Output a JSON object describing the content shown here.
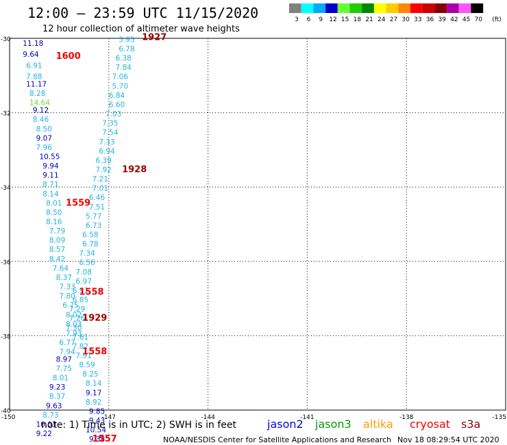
{
  "header": {
    "title": "12:00 – 23:59 UTC 11/15/2020",
    "subtitle": "12 hour collection of altimeter wave heights"
  },
  "legend": {
    "unit": "(ft)",
    "items": [
      {
        "label": "3",
        "color": "#808080"
      },
      {
        "label": "6",
        "color": "#00ffff"
      },
      {
        "label": "9",
        "color": "#00aaff"
      },
      {
        "label": "12",
        "color": "#0000cc"
      },
      {
        "label": "15",
        "color": "#66ff33"
      },
      {
        "label": "18",
        "color": "#22cc00"
      },
      {
        "label": "21",
        "color": "#008800"
      },
      {
        "label": "24",
        "color": "#ffff00"
      },
      {
        "label": "27",
        "color": "#ffcc00"
      },
      {
        "label": "30",
        "color": "#ff8800"
      },
      {
        "label": "33",
        "color": "#ff0000"
      },
      {
        "label": "36",
        "color": "#cc0000"
      },
      {
        "label": "39",
        "color": "#880000"
      },
      {
        "label": "42",
        "color": "#aa00aa"
      },
      {
        "label": "45",
        "color": "#ff55ff"
      },
      {
        "label": "70",
        "color": "#000000"
      }
    ]
  },
  "map": {
    "lon_range": [
      -150,
      -135
    ],
    "lat_range": [
      -40,
      -30
    ],
    "x_ticks": [
      "-150",
      "-147",
      "-144",
      "-141",
      "-138",
      "-135"
    ],
    "y_ticks": [
      "-30",
      "-32",
      "-34",
      "-36",
      "-38",
      "-40"
    ],
    "x_tick_values": [
      -150,
      -147,
      -144,
      -141,
      -138,
      -135
    ],
    "y_tick_values": [
      -30,
      -32,
      -34,
      -36,
      -38,
      -40
    ]
  },
  "colors": {
    "cyan_track": "#22b4e0",
    "navy_track": "#0000bb",
    "light_green": "#66dd33",
    "time_red": "#ee0000",
    "time_darkred": "#990000"
  },
  "track_labels": {
    "left_track": [
      {
        "lon": -149.6,
        "lat": -30.2,
        "text": "11.18",
        "c": "navy_track"
      },
      {
        "lon": -149.6,
        "lat": -30.5,
        "text": "9.64",
        "c": "navy_track"
      },
      {
        "lon": -149.5,
        "lat": -30.8,
        "text": "6.91",
        "c": "cyan_track"
      },
      {
        "lon": -149.5,
        "lat": -31.1,
        "text": "7.88",
        "c": "cyan_track"
      },
      {
        "lon": -149.5,
        "lat": -31.3,
        "text": "11.17",
        "c": "navy_track"
      },
      {
        "lon": -149.4,
        "lat": -31.55,
        "text": "8.28",
        "c": "cyan_track"
      },
      {
        "lon": -149.4,
        "lat": -31.8,
        "text": "14.64",
        "c": "light_green"
      },
      {
        "lon": -149.3,
        "lat": -32.0,
        "text": "9.12",
        "c": "navy_track"
      },
      {
        "lon": -149.3,
        "lat": -32.25,
        "text": "8.46",
        "c": "cyan_track"
      },
      {
        "lon": -149.2,
        "lat": -32.5,
        "text": "8.50",
        "c": "cyan_track"
      },
      {
        "lon": -149.2,
        "lat": -32.75,
        "text": "9.07",
        "c": "navy_track"
      },
      {
        "lon": -149.2,
        "lat": -33.0,
        "text": "7.96",
        "c": "cyan_track"
      },
      {
        "lon": -149.1,
        "lat": -33.25,
        "text": "10.55",
        "c": "navy_track"
      },
      {
        "lon": -149.0,
        "lat": -33.5,
        "text": "9.94",
        "c": "navy_track"
      },
      {
        "lon": -149.0,
        "lat": -33.75,
        "text": "9.11",
        "c": "navy_track"
      },
      {
        "lon": -149.0,
        "lat": -34.0,
        "text": "8.71",
        "c": "cyan_track"
      },
      {
        "lon": -149.0,
        "lat": -34.25,
        "text": "8.14",
        "c": "cyan_track"
      },
      {
        "lon": -148.9,
        "lat": -34.5,
        "text": "8.01",
        "c": "cyan_track"
      },
      {
        "lon": -148.9,
        "lat": -34.75,
        "text": "8.50",
        "c": "cyan_track"
      },
      {
        "lon": -148.9,
        "lat": -35.0,
        "text": "8.16",
        "c": "cyan_track"
      },
      {
        "lon": -148.8,
        "lat": -35.25,
        "text": "7.79",
        "c": "cyan_track"
      },
      {
        "lon": -148.8,
        "lat": -35.5,
        "text": "8.09",
        "c": "cyan_track"
      },
      {
        "lon": -148.8,
        "lat": -35.75,
        "text": "8.57",
        "c": "cyan_track"
      },
      {
        "lon": -148.8,
        "lat": -36.0,
        "text": "8.42",
        "c": "cyan_track"
      },
      {
        "lon": -148.7,
        "lat": -36.25,
        "text": "7.64",
        "c": "cyan_track"
      },
      {
        "lon": -148.6,
        "lat": -36.5,
        "text": "8.37",
        "c": "cyan_track"
      },
      {
        "lon": -148.5,
        "lat": -36.75,
        "text": "7.33",
        "c": "cyan_track"
      },
      {
        "lon": -148.5,
        "lat": -37.0,
        "text": "7.80",
        "c": "cyan_track"
      },
      {
        "lon": -148.4,
        "lat": -37.25,
        "text": "6.75",
        "c": "cyan_track"
      },
      {
        "lon": -148.3,
        "lat": -37.5,
        "text": "8.02",
        "c": "cyan_track"
      },
      {
        "lon": -148.3,
        "lat": -37.75,
        "text": "8.03",
        "c": "cyan_track"
      },
      {
        "lon": -148.3,
        "lat": -38.0,
        "text": "7.93",
        "c": "cyan_track"
      },
      {
        "lon": -148.5,
        "lat": -38.25,
        "text": "6.77",
        "c": "cyan_track"
      },
      {
        "lon": -148.5,
        "lat": -38.5,
        "text": "7.94",
        "c": "cyan_track"
      },
      {
        "lon": -148.6,
        "lat": -38.7,
        "text": "8.97",
        "c": "navy_track"
      },
      {
        "lon": -148.6,
        "lat": -38.95,
        "text": "7.75",
        "c": "cyan_track"
      },
      {
        "lon": -148.7,
        "lat": -39.2,
        "text": "8.01",
        "c": "cyan_track"
      },
      {
        "lon": -148.8,
        "lat": -39.45,
        "text": "9.23",
        "c": "navy_track"
      },
      {
        "lon": -148.8,
        "lat": -39.7,
        "text": "8.37",
        "c": "cyan_track"
      },
      {
        "lon": -148.9,
        "lat": -39.95,
        "text": "9.63",
        "c": "navy_track"
      },
      {
        "lon": -149.0,
        "lat": -40.2,
        "text": "8.73",
        "c": "cyan_track"
      },
      {
        "lon": -149.2,
        "lat": -40.45,
        "text": "10.03",
        "c": "navy_track"
      },
      {
        "lon": -149.2,
        "lat": -40.7,
        "text": "9.22",
        "c": "navy_track"
      }
    ],
    "right_track": [
      {
        "lon": -146.7,
        "lat": -30.1,
        "text": "5.95",
        "c": "cyan_track"
      },
      {
        "lon": -146.7,
        "lat": -30.35,
        "text": "6.78",
        "c": "cyan_track"
      },
      {
        "lon": -146.8,
        "lat": -30.6,
        "text": "6.38",
        "c": "cyan_track"
      },
      {
        "lon": -146.8,
        "lat": -30.85,
        "text": "7.84",
        "c": "cyan_track"
      },
      {
        "lon": -146.9,
        "lat": -31.1,
        "text": "7.06",
        "c": "cyan_track"
      },
      {
        "lon": -146.9,
        "lat": -31.35,
        "text": "5.70",
        "c": "cyan_track"
      },
      {
        "lon": -147.0,
        "lat": -31.6,
        "text": "6.84",
        "c": "cyan_track"
      },
      {
        "lon": -147.0,
        "lat": -31.85,
        "text": "6.60",
        "c": "cyan_track"
      },
      {
        "lon": -147.1,
        "lat": -32.1,
        "text": "7.03",
        "c": "cyan_track"
      },
      {
        "lon": -147.2,
        "lat": -32.35,
        "text": "7.35",
        "c": "cyan_track"
      },
      {
        "lon": -147.2,
        "lat": -32.6,
        "text": "7.54",
        "c": "cyan_track"
      },
      {
        "lon": -147.3,
        "lat": -32.85,
        "text": "7.33",
        "c": "cyan_track"
      },
      {
        "lon": -147.3,
        "lat": -33.1,
        "text": "6.94",
        "c": "cyan_track"
      },
      {
        "lon": -147.4,
        "lat": -33.35,
        "text": "6.39",
        "c": "cyan_track"
      },
      {
        "lon": -147.4,
        "lat": -33.6,
        "text": "7.92",
        "c": "cyan_track"
      },
      {
        "lon": -147.5,
        "lat": -33.85,
        "text": "7.21",
        "c": "cyan_track"
      },
      {
        "lon": -147.5,
        "lat": -34.1,
        "text": "7.01",
        "c": "cyan_track"
      },
      {
        "lon": -147.6,
        "lat": -34.35,
        "text": "6.46",
        "c": "cyan_track"
      },
      {
        "lon": -147.6,
        "lat": -34.6,
        "text": "7.51",
        "c": "cyan_track"
      },
      {
        "lon": -147.7,
        "lat": -34.85,
        "text": "5.77",
        "c": "cyan_track"
      },
      {
        "lon": -147.7,
        "lat": -35.1,
        "text": "6.73",
        "c": "cyan_track"
      },
      {
        "lon": -147.8,
        "lat": -35.35,
        "text": "6.58",
        "c": "cyan_track"
      },
      {
        "lon": -147.8,
        "lat": -35.6,
        "text": "6.78",
        "c": "cyan_track"
      },
      {
        "lon": -147.9,
        "lat": -35.85,
        "text": "7.34",
        "c": "cyan_track"
      },
      {
        "lon": -147.9,
        "lat": -36.1,
        "text": "6.56",
        "c": "cyan_track"
      },
      {
        "lon": -148.0,
        "lat": -36.35,
        "text": "7.08",
        "c": "cyan_track"
      },
      {
        "lon": -148.0,
        "lat": -36.6,
        "text": "6.97",
        "c": "cyan_track"
      },
      {
        "lon": -148.1,
        "lat": -36.85,
        "text": "6.91",
        "c": "cyan_track"
      },
      {
        "lon": -148.1,
        "lat": -37.1,
        "text": "6.85",
        "c": "cyan_track"
      },
      {
        "lon": -148.2,
        "lat": -37.35,
        "text": "7.29",
        "c": "cyan_track"
      },
      {
        "lon": -148.2,
        "lat": -37.6,
        "text": "7.26",
        "c": "cyan_track"
      },
      {
        "lon": -148.3,
        "lat": -37.85,
        "text": "7.30",
        "c": "cyan_track"
      },
      {
        "lon": -148.1,
        "lat": -38.1,
        "text": "7.61",
        "c": "cyan_track"
      },
      {
        "lon": -148.1,
        "lat": -38.35,
        "text": "7.82",
        "c": "cyan_track"
      },
      {
        "lon": -148.0,
        "lat": -38.6,
        "text": "7.91",
        "c": "cyan_track"
      },
      {
        "lon": -147.9,
        "lat": -38.85,
        "text": "8.59",
        "c": "cyan_track"
      },
      {
        "lon": -147.8,
        "lat": -39.1,
        "text": "8.25",
        "c": "cyan_track"
      },
      {
        "lon": -147.7,
        "lat": -39.35,
        "text": "8.14",
        "c": "cyan_track"
      },
      {
        "lon": -147.7,
        "lat": -39.6,
        "text": "9.17",
        "c": "navy_track"
      },
      {
        "lon": -147.7,
        "lat": -39.85,
        "text": "8.92",
        "c": "cyan_track"
      },
      {
        "lon": -147.6,
        "lat": -40.1,
        "text": "9.85",
        "c": "navy_track"
      },
      {
        "lon": -147.6,
        "lat": -40.35,
        "text": "9.43",
        "c": "navy_track"
      },
      {
        "lon": -147.7,
        "lat": -40.6,
        "text": "10.54",
        "c": "navy_track"
      },
      {
        "lon": -147.6,
        "lat": -40.85,
        "text": "9.38",
        "c": "navy_track"
      }
    ],
    "times": [
      {
        "lon": -146.0,
        "lat": -30.05,
        "text": "1927",
        "c": "time_darkred"
      },
      {
        "lon": -148.6,
        "lat": -30.55,
        "text": "1600",
        "c": "time_red"
      },
      {
        "lon": -146.6,
        "lat": -33.6,
        "text": "1928",
        "c": "time_darkred"
      },
      {
        "lon": -148.3,
        "lat": -34.5,
        "text": "1559",
        "c": "time_red"
      },
      {
        "lon": -147.9,
        "lat": -36.9,
        "text": "1558",
        "c": "time_red"
      },
      {
        "lon": -147.8,
        "lat": -37.6,
        "text": "1929",
        "c": "time_darkred"
      },
      {
        "lon": -147.8,
        "lat": -38.5,
        "text": "1558",
        "c": "time_red"
      },
      {
        "lon": -147.5,
        "lat": -40.85,
        "text": "1557",
        "c": "time_red"
      }
    ]
  },
  "footer": {
    "note": "note:  1) Time is in UTC; 2) SWH is in feet",
    "satellites": [
      {
        "label": "jason2",
        "color": "#0000dd"
      },
      {
        "label": "jason3",
        "color": "#009900"
      },
      {
        "label": "altika",
        "color": "#ff9900"
      },
      {
        "label": "cryosat",
        "color": "#ee0000"
      },
      {
        "label": "s3a",
        "color": "#880000"
      }
    ],
    "credit": "NOAA/NESDIS Center for Satellite Applications and Research",
    "timestamp": "Nov 18 08:29:54 UTC 2020"
  }
}
